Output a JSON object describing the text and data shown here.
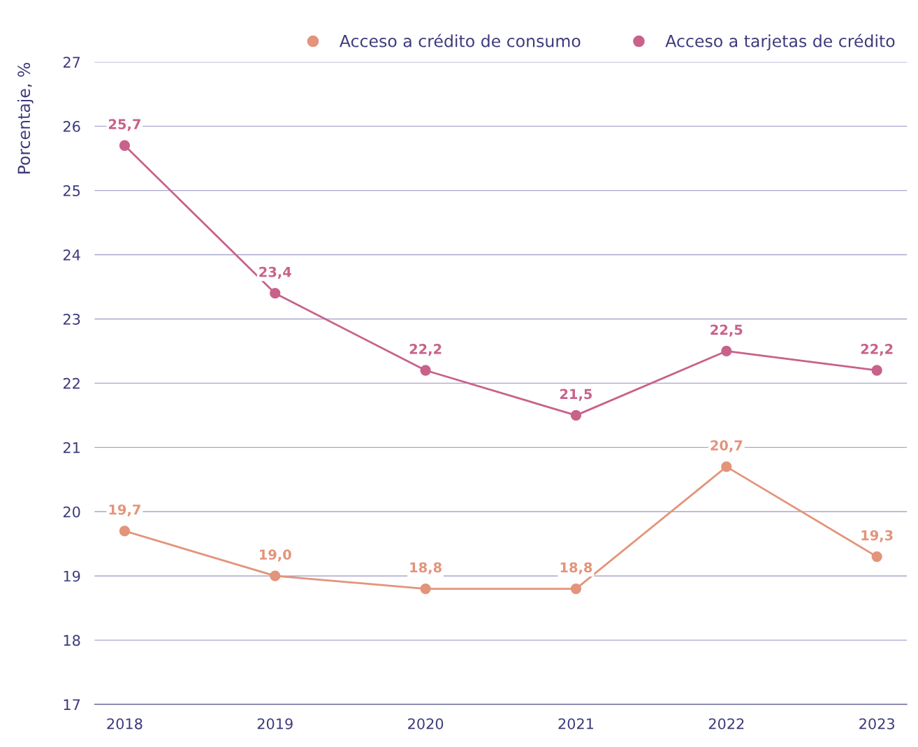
{
  "chart_data": {
    "type": "line",
    "ylabel": "Porcentaje, %",
    "categories": [
      "2018",
      "2019",
      "2020",
      "2021",
      "2022",
      "2023"
    ],
    "series": [
      {
        "name": "Acceso a crédito de consumo",
        "color": "#e3947a",
        "values": [
          19.7,
          19.0,
          18.8,
          18.8,
          20.7,
          19.3
        ],
        "value_labels": [
          "19,7",
          "19,0",
          "18,8",
          "18,8",
          "20,7",
          "19,3"
        ]
      },
      {
        "name": "Acceso a tarjetas de crédito",
        "color": "#c8628a",
        "values": [
          25.7,
          23.4,
          22.2,
          21.5,
          22.5,
          22.2
        ],
        "value_labels": [
          "25,7",
          "23,4",
          "22,2",
          "21,5",
          "22,5",
          "22,2"
        ]
      }
    ],
    "ylim": [
      17,
      27
    ],
    "yticks": [
      17,
      18,
      19,
      20,
      21,
      22,
      23,
      24,
      25,
      26,
      27
    ],
    "grid": "y",
    "legend": "top right",
    "marker": "circle",
    "line_style": "solid"
  }
}
